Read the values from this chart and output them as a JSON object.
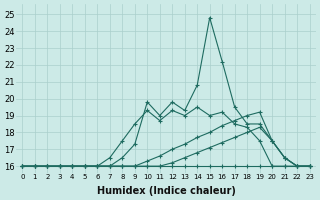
{
  "xlabel": "Humidex (Indice chaleur)",
  "ylabel": "",
  "xlim": [
    -0.5,
    23.5
  ],
  "ylim": [
    15.6,
    25.6
  ],
  "xticks": [
    0,
    1,
    2,
    3,
    4,
    5,
    6,
    7,
    8,
    9,
    10,
    11,
    12,
    13,
    14,
    15,
    16,
    17,
    18,
    19,
    20,
    21,
    22,
    23
  ],
  "yticks": [
    16,
    17,
    18,
    19,
    20,
    21,
    22,
    23,
    24,
    25
  ],
  "background_color": "#cceae7",
  "grid_color": "#aacfcc",
  "line_color": "#1e6b60",
  "curves": [
    {
      "x": [
        0,
        1,
        2,
        3,
        4,
        5,
        6,
        7,
        8,
        9,
        10,
        11,
        12,
        13,
        14,
        15,
        16,
        17,
        18,
        19,
        20,
        21,
        22,
        23
      ],
      "y": [
        16,
        16,
        16,
        16,
        16,
        16,
        16,
        16,
        16,
        16,
        16,
        16,
        16,
        16,
        16,
        16,
        16,
        16,
        16,
        16,
        16,
        16,
        16,
        16
      ]
    },
    {
      "x": [
        0,
        1,
        2,
        3,
        4,
        5,
        6,
        7,
        8,
        9,
        10,
        11,
        12,
        13,
        14,
        15,
        16,
        17,
        18,
        19,
        20,
        21,
        22,
        23
      ],
      "y": [
        16,
        16,
        16,
        16,
        16,
        16,
        16,
        16,
        16,
        16,
        16,
        16,
        16.2,
        16.5,
        16.8,
        17.1,
        17.4,
        17.7,
        18.0,
        18.3,
        17.5,
        16.5,
        16,
        16
      ]
    },
    {
      "x": [
        0,
        1,
        2,
        3,
        4,
        5,
        6,
        7,
        8,
        9,
        10,
        11,
        12,
        13,
        14,
        15,
        16,
        17,
        18,
        19,
        20,
        21,
        22,
        23
      ],
      "y": [
        16,
        16,
        16,
        16,
        16,
        16,
        16,
        16,
        16,
        16,
        16.3,
        16.6,
        17.0,
        17.3,
        17.7,
        18.0,
        18.4,
        18.7,
        19.0,
        19.2,
        17.5,
        16.5,
        16,
        16
      ]
    },
    {
      "x": [
        0,
        1,
        2,
        3,
        4,
        5,
        6,
        7,
        8,
        9,
        10,
        11,
        12,
        13,
        14,
        15,
        16,
        17,
        18,
        19,
        20,
        21,
        22,
        23
      ],
      "y": [
        16,
        16,
        16,
        16,
        16,
        16,
        16,
        16.5,
        17.5,
        18.5,
        19.3,
        18.7,
        19.3,
        19.0,
        19.5,
        19.0,
        19.2,
        18.5,
        18.3,
        17.5,
        16,
        16,
        16,
        16
      ]
    },
    {
      "x": [
        0,
        1,
        2,
        3,
        4,
        5,
        6,
        7,
        8,
        9,
        10,
        11,
        12,
        13,
        14,
        15,
        16,
        17,
        18,
        19,
        20,
        21,
        22,
        23
      ],
      "y": [
        16,
        16,
        16,
        16,
        16,
        16,
        16,
        16,
        16.5,
        17.3,
        19.8,
        19.0,
        19.8,
        19.3,
        20.8,
        24.8,
        22.2,
        19.5,
        18.5,
        18.5,
        17.5,
        16.5,
        16,
        16
      ]
    }
  ]
}
